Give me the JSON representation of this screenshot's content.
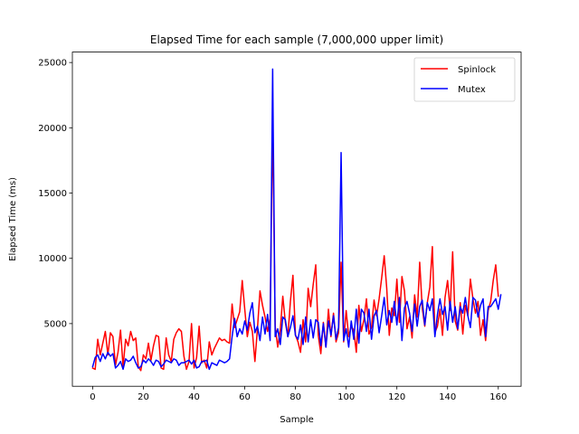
{
  "chart_data": {
    "type": "line",
    "title": "Elapsed Time for each sample (7,000,000 upper limit)",
    "xlabel": "Sample",
    "ylabel": "Elapsed Time (ms)",
    "xlim": [
      -8,
      169
    ],
    "ylim": [
      200,
      25800
    ],
    "xticks": [
      0,
      20,
      40,
      60,
      80,
      100,
      120,
      140,
      160
    ],
    "yticks": [
      5000,
      10000,
      15000,
      20000,
      25000
    ],
    "legend_position": "top-right",
    "series": [
      {
        "name": "Spinlock",
        "color": "#ff0000",
        "values": [
          1600,
          1500,
          3800,
          2600,
          3500,
          4400,
          2600,
          4300,
          4000,
          1800,
          2800,
          4500,
          1700,
          3800,
          3300,
          4400,
          3700,
          3900,
          1700,
          1400,
          2600,
          2300,
          3500,
          2200,
          3300,
          4100,
          4000,
          1600,
          1500,
          3900,
          2600,
          2100,
          3800,
          4300,
          4600,
          4400,
          2500,
          1500,
          2100,
          5000,
          1600,
          2400,
          4800,
          2000,
          2200,
          1600,
          3600,
          2600,
          3100,
          3500,
          3900,
          3700,
          3800,
          3600,
          3500,
          6500,
          4700,
          5300,
          5900,
          8300,
          6100,
          4000,
          5100,
          4400,
          2100,
          4600,
          7500,
          6400,
          5500,
          4400,
          5400,
          20600,
          4800,
          3200,
          4500,
          7100,
          5100,
          4000,
          6700,
          8700,
          4100,
          3600,
          2800,
          5300,
          3600,
          7700,
          6300,
          8000,
          9500,
          4100,
          2700,
          5100,
          3200,
          6100,
          4000,
          5800,
          3600,
          4300,
          9700,
          3600,
          6000,
          4000,
          4800,
          4500,
          2800,
          6400,
          4400,
          5300,
          6900,
          4200,
          4700,
          6800,
          5600,
          6900,
          8500,
          10200,
          7700,
          4100,
          6200,
          5600,
          8400,
          5100,
          8600,
          7500,
          4600,
          5500,
          3900,
          7200,
          5500,
          9700,
          6200,
          4800,
          6600,
          7800,
          10900,
          4300,
          4800,
          6100,
          4100,
          7000,
          8300,
          6000,
          10500,
          5200,
          4500,
          6600,
          4200,
          6400,
          5600,
          8400,
          6900,
          5800,
          6700,
          4100,
          5300,
          3700,
          6000,
          6700,
          8300,
          9500,
          7100
        ]
      },
      {
        "name": "Mutex",
        "color": "#0000ff",
        "values": [
          1700,
          2400,
          2600,
          2100,
          2700,
          2300,
          2800,
          2500,
          2700,
          1600,
          1800,
          2100,
          1500,
          2300,
          2100,
          2200,
          2500,
          2000,
          1600,
          1700,
          2200,
          2000,
          2300,
          2100,
          1800,
          2200,
          2100,
          1700,
          1900,
          2200,
          2100,
          2000,
          2300,
          2200,
          1800,
          2000,
          2000,
          2100,
          2200,
          1900,
          2200,
          1600,
          1700,
          2100,
          2100,
          2200,
          1500,
          2000,
          1900,
          1800,
          2200,
          2100,
          2000,
          2100,
          2300,
          4000,
          5400,
          4000,
          4600,
          4200,
          5200,
          4500,
          5800,
          6600,
          4300,
          4800,
          3700,
          5500,
          4200,
          5700,
          3700,
          24500,
          4000,
          4600,
          3400,
          5500,
          5300,
          4000,
          4700,
          5600,
          4100,
          3800,
          4900,
          3400,
          5500,
          3600,
          5300,
          3900,
          5300,
          5100,
          3300,
          5000,
          3200,
          5200,
          4100,
          5600,
          3800,
          4700,
          18100,
          3700,
          4600,
          3200,
          5200,
          3800,
          6100,
          3500,
          6100,
          5800,
          4400,
          6100,
          3800,
          5600,
          6000,
          4300,
          5600,
          7000,
          4900,
          6000,
          5100,
          6700,
          4900,
          7000,
          3700,
          6200,
          6700,
          5800,
          4400,
          6500,
          4800,
          6300,
          6800,
          4900,
          6600,
          6000,
          6900,
          4000,
          5700,
          6900,
          5700,
          6300,
          4500,
          6700,
          5100,
          6300,
          4600,
          6300,
          5800,
          7000,
          5600,
          4700,
          7000,
          6800,
          5500,
          6400,
          6900,
          4000,
          6300,
          6300,
          6600,
          6900,
          6100,
          7200
        ]
      }
    ]
  }
}
